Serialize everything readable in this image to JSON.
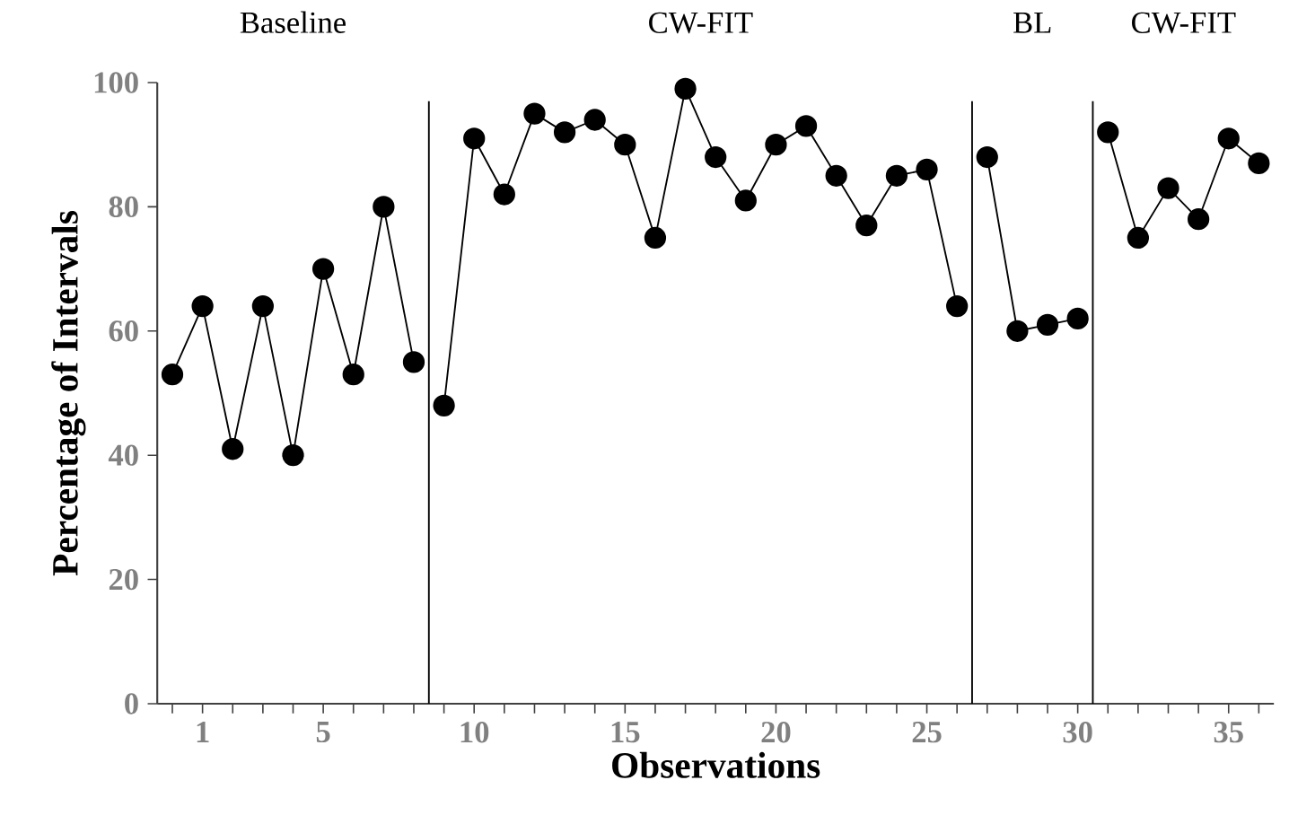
{
  "chart_data": {
    "type": "line",
    "xlabel": "Observations",
    "ylabel": "Percentage of Intervals",
    "annotations": [
      "Baseline",
      "CW-FIT",
      "BL",
      "CW-FIT"
    ],
    "series": [
      {
        "color": "#000000",
        "x": [
          0,
          1,
          2,
          3,
          4,
          5,
          6,
          7,
          8
        ],
        "values": [
          53,
          64,
          41,
          64,
          40,
          70,
          53,
          80,
          55
        ]
      },
      {
        "color": "#000000",
        "x": [
          9,
          10,
          11,
          12,
          13,
          14,
          15,
          16,
          17,
          18,
          19,
          20,
          21,
          22,
          23,
          24,
          25,
          26
        ],
        "values": [
          48,
          91,
          82,
          95,
          92,
          94,
          90,
          75,
          99,
          88,
          81,
          90,
          93,
          85,
          77,
          85,
          86,
          64
        ]
      },
      {
        "color": "#000000",
        "x": [
          27,
          28,
          29,
          30
        ],
        "values": [
          88,
          60,
          61,
          62
        ]
      },
      {
        "color": "#000000",
        "x": [
          31,
          32,
          33,
          34,
          35,
          36
        ],
        "values": [
          92,
          75,
          83,
          78,
          91,
          87
        ]
      }
    ],
    "ref_lines": [
      {
        "axis": "x",
        "value": 8.5,
        "color": "#000000"
      },
      {
        "axis": "x",
        "value": 26.5,
        "color": "#000000"
      },
      {
        "axis": "x",
        "value": 30.5,
        "color": "#000000"
      }
    ],
    "xlim": [
      -0.5,
      36.5
    ],
    "ylim": [
      0,
      100
    ],
    "xticks": [
      {
        "value": 0,
        "label": null
      },
      1,
      {
        "value": 2,
        "label": null
      },
      {
        "value": 3,
        "label": null
      },
      {
        "value": 4,
        "label": null
      },
      {
        "value": 5,
        "label": "5"
      },
      {
        "value": 6,
        "label": null
      },
      {
        "value": 7,
        "label": null
      },
      {
        "value": 8,
        "label": null
      },
      {
        "value": 9,
        "label": null
      },
      {
        "value": 10,
        "label": "10"
      },
      {
        "value": 11,
        "label": null
      },
      {
        "value": 12,
        "label": null
      },
      {
        "value": 13,
        "label": null
      },
      {
        "value": 14,
        "label": null
      },
      {
        "value": 15,
        "label": "15"
      },
      {
        "value": 16,
        "label": null
      },
      {
        "value": 17,
        "label": null
      },
      {
        "value": 18,
        "label": null
      },
      {
        "value": 19,
        "label": null
      },
      {
        "value": 20,
        "label": "20"
      },
      {
        "value": 21,
        "label": null
      },
      {
        "value": 22,
        "label": null
      },
      {
        "value": 23,
        "label": null
      },
      {
        "value": 24,
        "label": null
      },
      {
        "value": 25,
        "label": "25"
      },
      {
        "value": 26,
        "label": null
      },
      {
        "value": 27,
        "label": null
      },
      {
        "value": 28,
        "label": null
      },
      {
        "value": 29,
        "label": null
      },
      {
        "value": 30,
        "label": "30"
      },
      {
        "value": 31,
        "label": null
      },
      {
        "value": 32,
        "label": null
      },
      {
        "value": 33,
        "label": null
      },
      {
        "value": 34,
        "label": null
      },
      {
        "value": 35,
        "label": "35"
      },
      {
        "value": 36,
        "label": null
      }
    ],
    "yticks": [
      0,
      20,
      40,
      60,
      80,
      100
    ],
    "grid": false,
    "marker": "circle",
    "line_style": "solid"
  }
}
